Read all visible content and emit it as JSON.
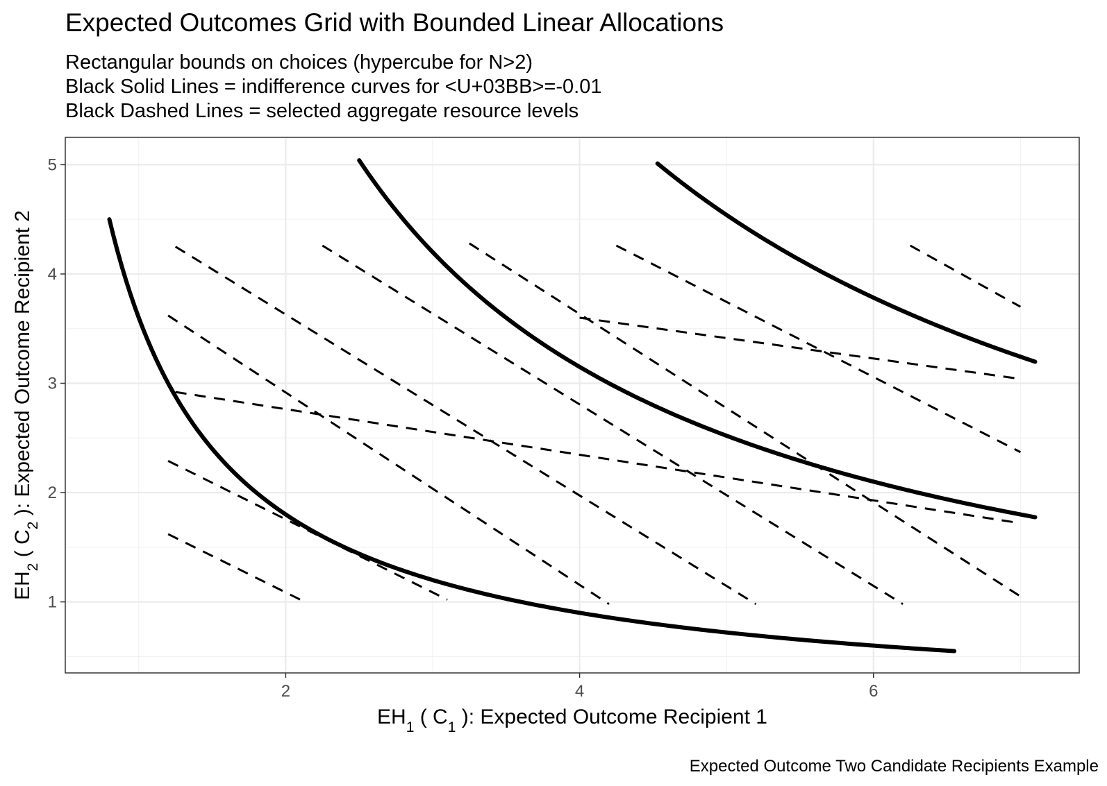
{
  "title": "Expected Outcomes Grid with Bounded Linear Allocations",
  "subtitle_lines": [
    "Rectangular bounds on choices (hypercube for N>2)",
    "Black Solid Lines = indifference curves for <U+03BB>=-0.01",
    "Black Dashed Lines = selected aggregate resource levels"
  ],
  "caption": "Expected Outcome Two Candidate Recipients Example",
  "chart_data": {
    "type": "line",
    "title": "Expected Outcomes Grid with Bounded Linear Allocations",
    "xlabel": {
      "main": "EH",
      "sub1": "1",
      "mid": " ( C",
      "sub2": "1",
      "end": " ):  Expected Outcome Recipient 1"
    },
    "ylabel": {
      "main": "EH",
      "sub1": "2",
      "mid": " ( C",
      "sub2": "2",
      "end": " ):  Expected Outcome Recipient 2"
    },
    "xlim": [
      0.5,
      7.4
    ],
    "ylim": [
      0.35,
      5.25
    ],
    "x_ticks": [
      2,
      4,
      6
    ],
    "y_ticks": [
      1,
      2,
      3,
      4,
      5
    ],
    "grid": true,
    "indifference_curves": [
      {
        "k": 3.6,
        "x_from": 0.8,
        "x_to": 6.55
      },
      {
        "k": 12.6,
        "x_from": 2.5,
        "x_to": 7.1
      },
      {
        "k": 22.7,
        "x_from": 4.53,
        "x_to": 7.1
      }
    ],
    "dashed_lines": [
      {
        "start": [
          1.2,
          1.62
        ],
        "end": [
          2.1,
          1.02
        ]
      },
      {
        "start": [
          1.2,
          2.29
        ],
        "end": [
          3.1,
          1.02
        ]
      },
      {
        "start": [
          1.2,
          3.62
        ],
        "end": [
          4.2,
          0.98
        ]
      },
      {
        "start": [
          1.25,
          4.25
        ],
        "end": [
          5.2,
          0.98
        ]
      },
      {
        "start": [
          2.25,
          4.26
        ],
        "end": [
          6.2,
          0.98
        ]
      },
      {
        "start": [
          3.25,
          4.28
        ],
        "end": [
          7.0,
          1.05
        ]
      },
      {
        "start": [
          4.25,
          4.26
        ],
        "end": [
          7.0,
          2.37
        ]
      },
      {
        "start": [
          6.25,
          4.26
        ],
        "end": [
          7.0,
          3.7
        ]
      },
      {
        "start": [
          1.25,
          2.92
        ],
        "end": [
          7.0,
          1.72
        ]
      },
      {
        "start": [
          4.0,
          3.6
        ],
        "end": [
          7.0,
          3.04
        ]
      }
    ]
  }
}
